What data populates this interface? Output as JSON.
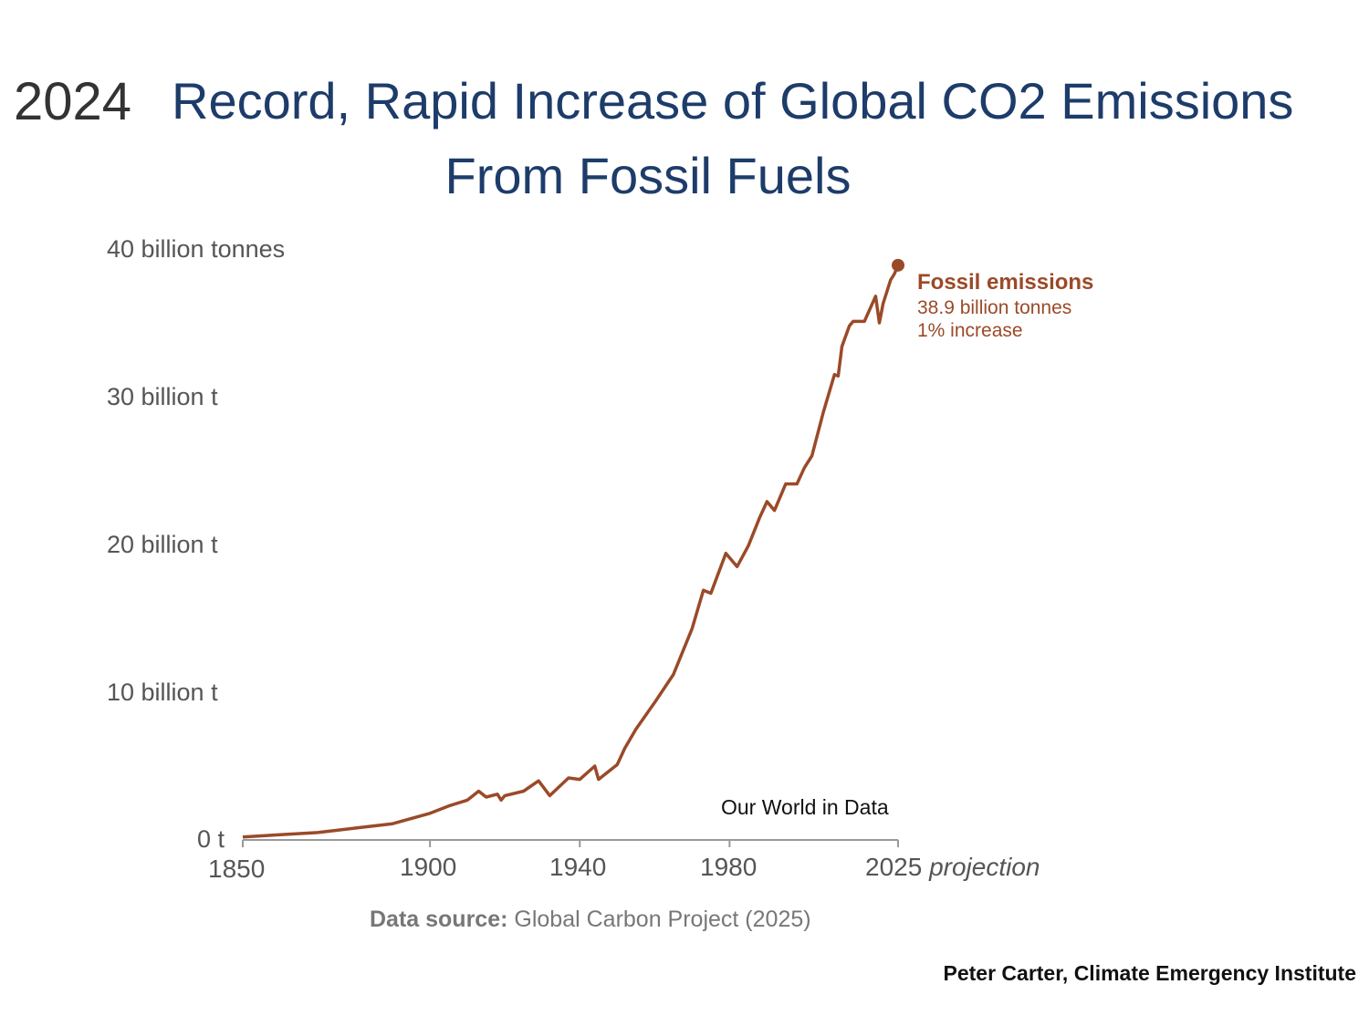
{
  "title": {
    "year": "2024",
    "line1": "Record, Rapid Increase of Global CO2 Emissions",
    "line2": "From Fossil Fuels"
  },
  "credit": "Peter Carter, Climate Emergency Institute",
  "chart_data": {
    "type": "line",
    "title": "Record, Rapid Increase of Global CO2 Emissions From Fossil Fuels",
    "xlabel": "",
    "ylabel": "",
    "xlim": [
      1850,
      2025
    ],
    "ylim": [
      0,
      40
    ],
    "grid": false,
    "x_ticks": [
      {
        "value": 1850,
        "label": "1850"
      },
      {
        "value": 1900,
        "label": "1900"
      },
      {
        "value": 1940,
        "label": "1940"
      },
      {
        "value": 1980,
        "label": "1980"
      },
      {
        "value": 2025,
        "label": "2025",
        "suffix": "projection"
      }
    ],
    "y_ticks": [
      {
        "value": 0,
        "label": "0 t"
      },
      {
        "value": 10,
        "label": "10 billion t"
      },
      {
        "value": 20,
        "label": "20 billion t"
      },
      {
        "value": 30,
        "label": "30 billion t"
      },
      {
        "value": 40,
        "label": "40 billion tonnes"
      }
    ],
    "series": [
      {
        "name": "Fossil emissions",
        "color": "#9a4a28",
        "x": [
          1850,
          1860,
          1870,
          1880,
          1890,
          1900,
          1905,
          1910,
          1913,
          1915,
          1918,
          1919,
          1920,
          1925,
          1929,
          1932,
          1937,
          1940,
          1944,
          1945,
          1950,
          1952,
          1955,
          1960,
          1965,
          1970,
          1973,
          1975,
          1979,
          1982,
          1985,
          1988,
          1990,
          1992,
          1995,
          1998,
          2000,
          2002,
          2005,
          2008,
          2009,
          2010,
          2012,
          2013,
          2016,
          2019,
          2020,
          2021,
          2022,
          2023,
          2024,
          2025
        ],
        "y": [
          0.2,
          0.35,
          0.5,
          0.8,
          1.1,
          1.8,
          2.3,
          2.7,
          3.3,
          2.9,
          3.1,
          2.7,
          3.0,
          3.3,
          4.0,
          3.0,
          4.2,
          4.1,
          5.0,
          4.1,
          5.1,
          6.2,
          7.5,
          9.3,
          11.2,
          14.3,
          16.9,
          16.7,
          19.4,
          18.5,
          19.9,
          21.8,
          22.9,
          22.3,
          24.1,
          24.1,
          25.2,
          26.0,
          28.9,
          31.5,
          31.4,
          33.4,
          34.8,
          35.1,
          35.1,
          36.8,
          35.0,
          36.3,
          37.1,
          37.9,
          38.3,
          38.9
        ]
      }
    ],
    "annotation": {
      "label": "Fossil emissions",
      "value": "38.9 billion tonnes",
      "change": "1% increase"
    },
    "watermark": "Our World in Data",
    "source_label": "Data source:",
    "source": "Global Carbon Project (2025)"
  }
}
